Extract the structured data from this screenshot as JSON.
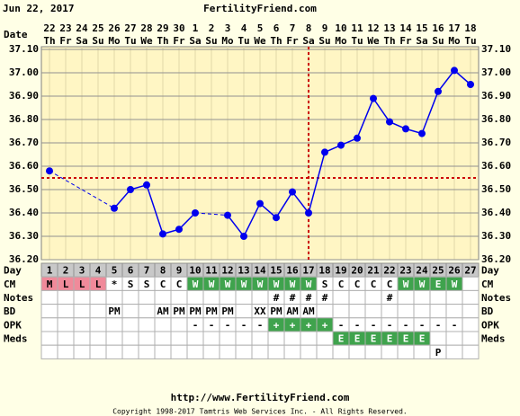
{
  "header": {
    "date": "Jun 22, 2017",
    "site": "FertilityFriend.com"
  },
  "chart_data": {
    "type": "line",
    "x_label": "Date",
    "dates": [
      "22",
      "23",
      "24",
      "25",
      "26",
      "27",
      "28",
      "29",
      "30",
      "1",
      "2",
      "3",
      "4",
      "5",
      "6",
      "7",
      "8",
      "9",
      "10",
      "11",
      "12",
      "13",
      "14",
      "15",
      "16",
      "17",
      "18"
    ],
    "weekdays": [
      "Th",
      "Fr",
      "Sa",
      "Su",
      "Mo",
      "Tu",
      "We",
      "Th",
      "Fr",
      "Sa",
      "Su",
      "Mo",
      "Tu",
      "We",
      "Th",
      "Fr",
      "Sa",
      "Su",
      "Mo",
      "Tu",
      "We",
      "Th",
      "Fr",
      "Sa",
      "Su",
      "Mo",
      "Tu"
    ],
    "day_label": "Day",
    "days": [
      1,
      2,
      3,
      4,
      5,
      6,
      7,
      8,
      9,
      10,
      11,
      12,
      13,
      14,
      15,
      16,
      17,
      18,
      19,
      20,
      21,
      22,
      23,
      24,
      25,
      26,
      27
    ],
    "values": [
      36.58,
      null,
      null,
      null,
      36.42,
      36.5,
      36.52,
      36.31,
      36.33,
      36.4,
      null,
      36.39,
      36.3,
      36.44,
      36.38,
      36.49,
      36.4,
      36.66,
      36.69,
      36.72,
      36.89,
      36.79,
      36.76,
      36.74,
      36.92,
      37.01,
      36.95
    ],
    "color": "#0000ee",
    "coverline": 36.55,
    "ovulation_day": 17,
    "marker_color": "#cc0000",
    "ylim": [
      36.2,
      37.1
    ],
    "yticks": [
      {
        "value": 36.2,
        "label": "36.20"
      },
      {
        "value": 36.3,
        "label": "36.30"
      },
      {
        "value": 36.4,
        "label": "36.40"
      },
      {
        "value": 36.5,
        "label": "36.50"
      },
      {
        "value": 36.6,
        "label": "36.60"
      },
      {
        "value": 36.7,
        "label": "36.70"
      },
      {
        "value": 36.8,
        "label": "36.80"
      },
      {
        "value": 36.9,
        "label": "36.90"
      },
      {
        "value": 37.0,
        "label": "37.00"
      },
      {
        "value": 37.1,
        "label": "37.10"
      }
    ],
    "grid": true,
    "rows": [
      {
        "label": "CM",
        "cells": [
          "M",
          "L",
          "L",
          "L",
          "*",
          "S",
          "S",
          "C",
          "C",
          "W",
          "W",
          "W",
          "W",
          "W",
          "W",
          "W",
          "W",
          "S",
          "C",
          "C",
          "C",
          "C",
          "W",
          "W",
          "E",
          "W",
          null
        ]
      },
      {
        "label": "Notes",
        "cells": [
          null,
          null,
          null,
          null,
          null,
          null,
          null,
          null,
          null,
          null,
          null,
          null,
          null,
          null,
          "#",
          "#",
          "#",
          "#",
          null,
          null,
          null,
          "#",
          null,
          null,
          null,
          null,
          null
        ]
      },
      {
        "label": "BD",
        "cells": [
          null,
          null,
          null,
          null,
          "PM",
          null,
          null,
          "AM",
          "PM",
          "PM",
          "PM",
          "PM",
          null,
          "XX",
          "PM",
          "AM",
          "AM",
          null,
          null,
          null,
          null,
          null,
          null,
          null,
          null,
          null,
          null
        ]
      },
      {
        "label": "OPK",
        "cells": [
          null,
          null,
          null,
          null,
          null,
          null,
          null,
          null,
          null,
          "-",
          "-",
          "-",
          "-",
          "-",
          "+",
          "+",
          "+",
          "+",
          "-",
          "-",
          "-",
          "-",
          "-",
          "-",
          "-",
          "-",
          null
        ]
      },
      {
        "label": "Meds",
        "cells": [
          null,
          null,
          null,
          null,
          null,
          null,
          null,
          null,
          null,
          null,
          null,
          null,
          null,
          null,
          null,
          null,
          null,
          null,
          "E",
          "E",
          "E",
          "E",
          "E",
          "E",
          null,
          null,
          null
        ]
      },
      {
        "cells": [
          null,
          null,
          null,
          null,
          null,
          null,
          null,
          null,
          null,
          null,
          null,
          null,
          null,
          null,
          null,
          null,
          null,
          null,
          null,
          null,
          null,
          null,
          null,
          null,
          "P",
          null,
          null
        ]
      }
    ],
    "cell_colors": {
      "M": "#f08a9a",
      "L": "#f08a9a",
      "W": "#3fa34d",
      "E": "#3fa34d",
      "+": "#3fa34d"
    }
  },
  "footer": {
    "url": "http://www.FertilityFriend.com",
    "copyright": "Copyright 1998-2017 Tamtris Web Services Inc. - All Rights Reserved."
  }
}
